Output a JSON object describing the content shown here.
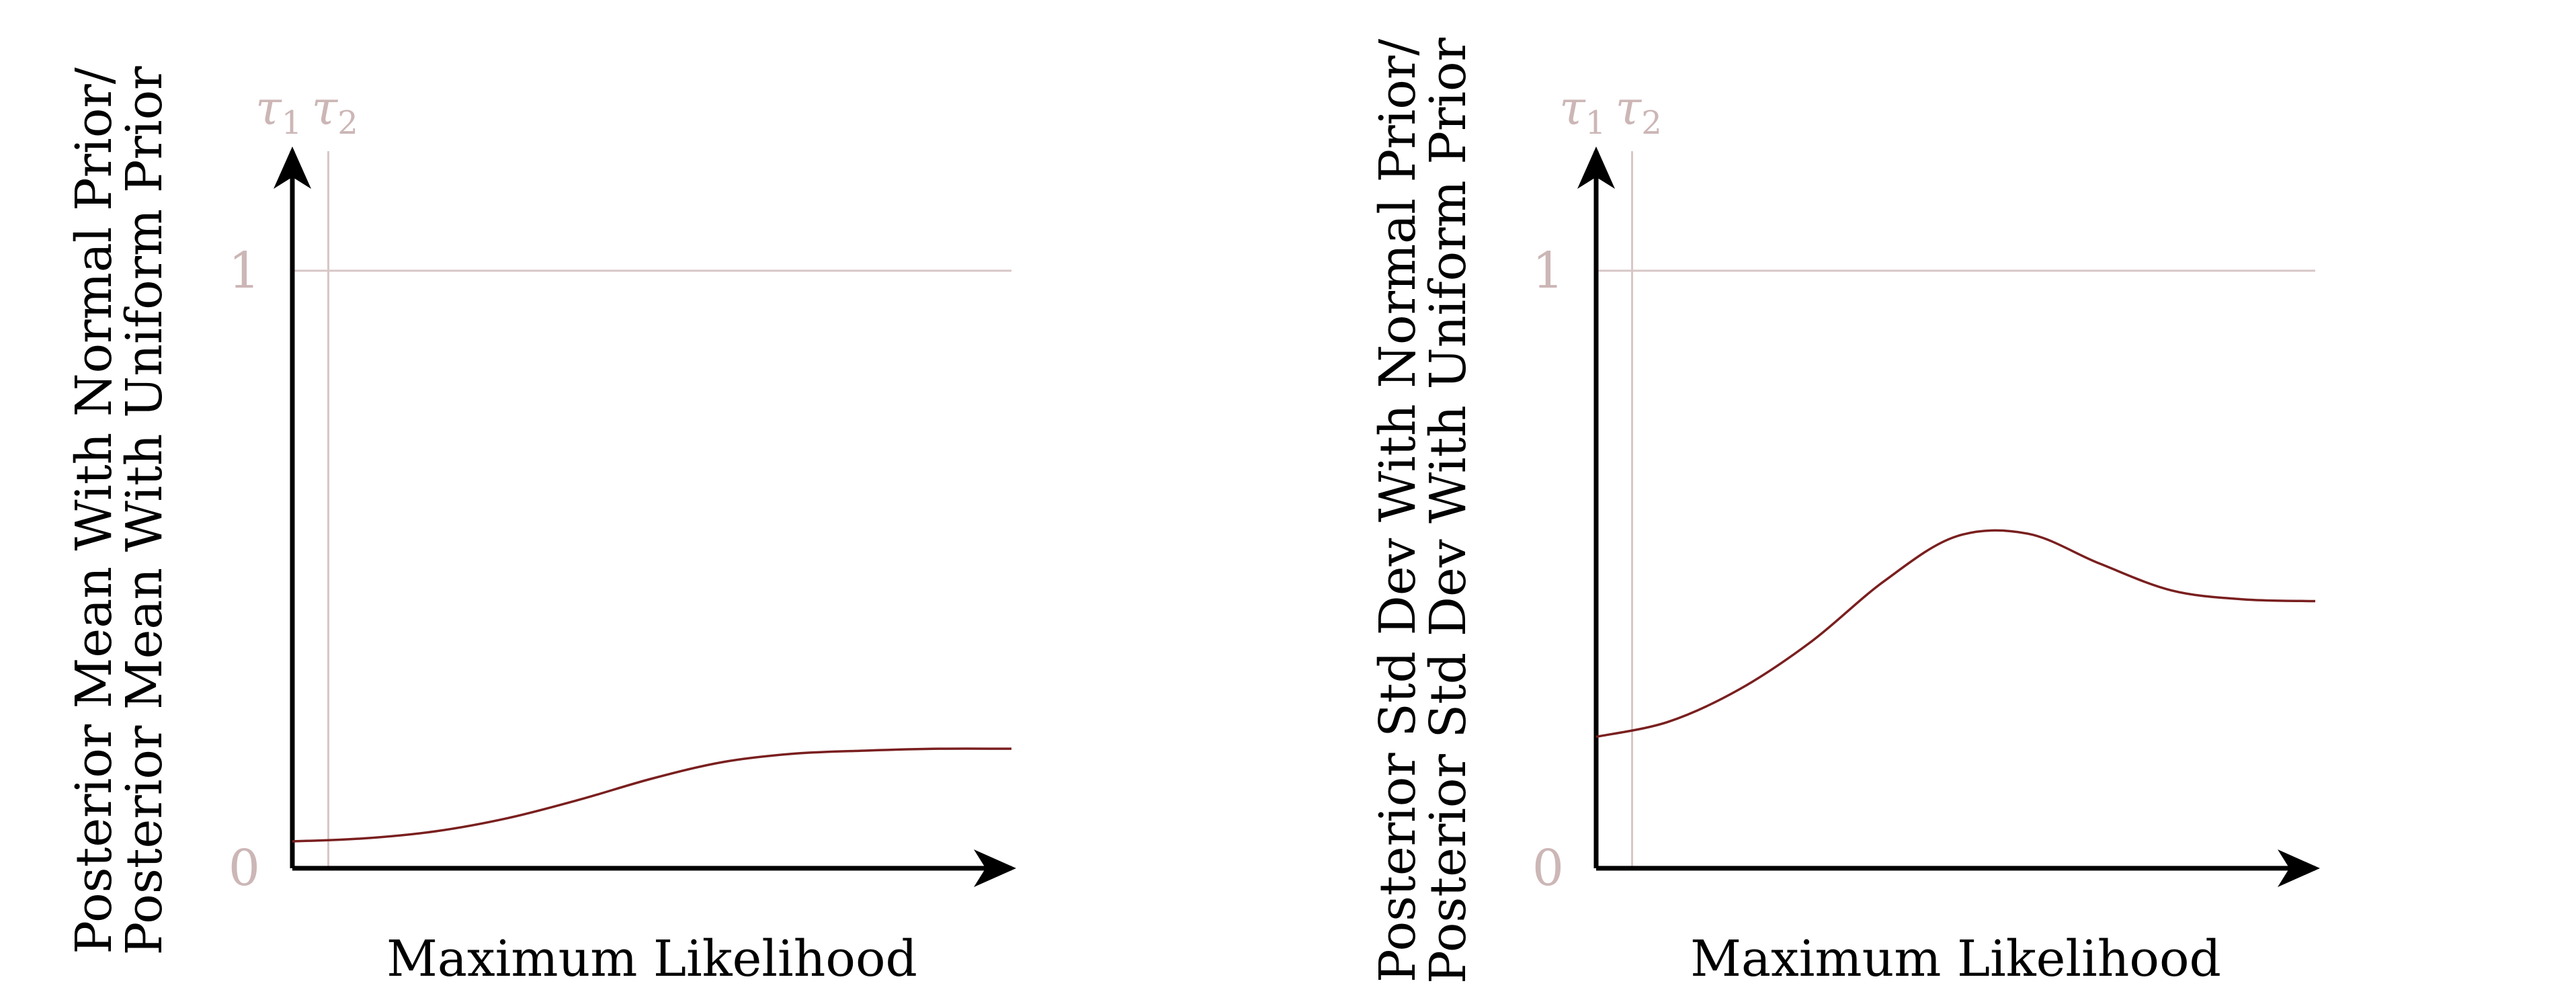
{
  "colors": {
    "axis": "#000000",
    "curve": "#7a1f1f",
    "guide": "#d8c6c6",
    "guide_text": "#ccb6b6"
  },
  "chart_data": [
    {
      "type": "line",
      "title": "",
      "xlabel": "Maximum Likelihood",
      "ylabel_lines": [
        "Posterior Mean With Normal Prior/",
        "Posterior Mean With Uniform Prior"
      ],
      "xlim": [
        0,
        1
      ],
      "ylim": [
        0,
        1.2
      ],
      "x_ticks": [],
      "y_ticks": [
        {
          "value": 0,
          "label": "0"
        },
        {
          "value": 1,
          "label": "1"
        }
      ],
      "markers": [
        {
          "x": 0.0,
          "symbol": "τ",
          "sub": "1"
        },
        {
          "x": 0.05,
          "symbol": "τ",
          "sub": "2"
        }
      ],
      "reference_line_y": 1,
      "grid": false,
      "legend": "none",
      "series": [
        {
          "x": [
            0,
            0.1,
            0.2,
            0.3,
            0.4,
            0.5,
            0.6,
            0.7,
            0.8,
            0.9,
            1.0
          ],
          "y": [
            0.045,
            0.05,
            0.062,
            0.084,
            0.115,
            0.15,
            0.178,
            0.192,
            0.197,
            0.2,
            0.2
          ]
        }
      ]
    },
    {
      "type": "line",
      "title": "",
      "xlabel": "Maximum Likelihood",
      "ylabel_lines": [
        "Posterior Std Dev With Normal Prior/",
        "Posterior Std Dev With Uniform Prior"
      ],
      "xlim": [
        0,
        1
      ],
      "ylim": [
        0,
        1.2
      ],
      "x_ticks": [],
      "y_ticks": [
        {
          "value": 0,
          "label": "0"
        },
        {
          "value": 1,
          "label": "1"
        }
      ],
      "markers": [
        {
          "x": 0.0,
          "symbol": "τ",
          "sub": "1"
        },
        {
          "x": 0.05,
          "symbol": "τ",
          "sub": "2"
        }
      ],
      "reference_line_y": 1,
      "grid": false,
      "legend": "none",
      "series": [
        {
          "x": [
            0,
            0.1,
            0.2,
            0.3,
            0.4,
            0.5,
            0.6,
            0.7,
            0.8,
            0.9,
            1.0
          ],
          "y": [
            0.22,
            0.245,
            0.3,
            0.38,
            0.48,
            0.555,
            0.56,
            0.51,
            0.465,
            0.45,
            0.447
          ]
        }
      ]
    }
  ]
}
